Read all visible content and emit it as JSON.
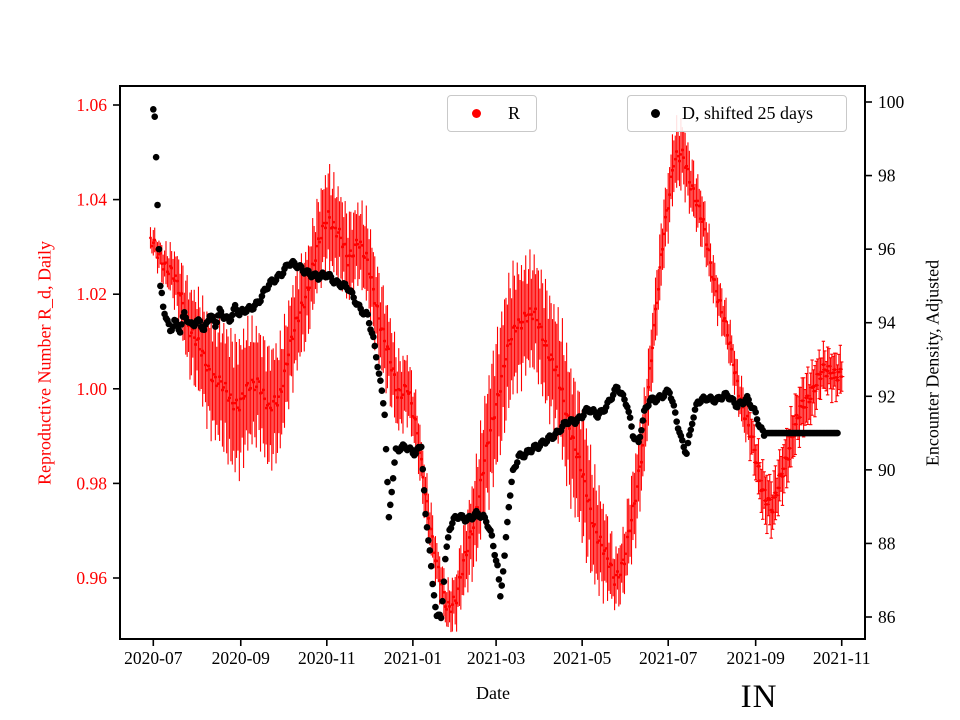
{
  "figure": {
    "background": "#ffffff",
    "annotation": "IN"
  },
  "chart_data": {
    "type": "scatter",
    "title": "",
    "xlabel": "Date",
    "grid": false,
    "x_tick_labels": [
      "2020-07",
      "2020-09",
      "2020-11",
      "2021-01",
      "2021-03",
      "2021-05",
      "2021-07",
      "2021-09",
      "2021-11"
    ],
    "left_axis": {
      "label": "Reproductive Number R_d, Daily",
      "color": "#ff0000",
      "tick_labels": [
        "0.96",
        "0.98",
        "1.00",
        "1.02",
        "1.04",
        "1.06"
      ],
      "range": [
        0.9475,
        1.0645
      ]
    },
    "right_axis": {
      "label": "Encounter Density, Adjusted",
      "color": "#000000",
      "tick_labels": [
        "86",
        "88",
        "90",
        "92",
        "94",
        "96",
        "98",
        "100"
      ],
      "range": [
        85.4,
        100.47
      ]
    },
    "legend": [
      {
        "label": "R",
        "color": "#ff0000",
        "marker": "dot"
      },
      {
        "label": "D, shifted 25 days",
        "color": "#000000",
        "marker": "dot"
      }
    ],
    "series": [
      {
        "name": "R",
        "axis": "left",
        "color": "#ff0000",
        "marker": "point-with-errorbar",
        "points_format": [
          "date",
          "R_value",
          "error_halfwidth"
        ],
        "points": [
          [
            "2020-06-29",
            1.031,
            0.002
          ],
          [
            "2020-07-06",
            1.028,
            0.003
          ],
          [
            "2020-07-13",
            1.025,
            0.004
          ],
          [
            "2020-07-20",
            1.02,
            0.006
          ],
          [
            "2020-07-27",
            1.013,
            0.008
          ],
          [
            "2020-08-03",
            1.008,
            0.009
          ],
          [
            "2020-08-10",
            1.004,
            0.01
          ],
          [
            "2020-08-17",
            1.001,
            0.011
          ],
          [
            "2020-08-24",
            0.998,
            0.012
          ],
          [
            "2020-08-31",
            0.997,
            0.012
          ],
          [
            "2020-09-07",
            1.0,
            0.011
          ],
          [
            "2020-09-14",
            1.002,
            0.01
          ],
          [
            "2020-09-21",
            0.995,
            0.011
          ],
          [
            "2020-09-28",
            0.998,
            0.01
          ],
          [
            "2020-10-05",
            1.008,
            0.009
          ],
          [
            "2020-10-12",
            1.015,
            0.009
          ],
          [
            "2020-10-19",
            1.022,
            0.008
          ],
          [
            "2020-10-26",
            1.03,
            0.008
          ],
          [
            "2020-11-02",
            1.037,
            0.009
          ],
          [
            "2020-11-09",
            1.033,
            0.008
          ],
          [
            "2020-11-16",
            1.027,
            0.008
          ],
          [
            "2020-11-23",
            1.032,
            0.007
          ],
          [
            "2020-11-30",
            1.026,
            0.008
          ],
          [
            "2020-12-07",
            1.017,
            0.008
          ],
          [
            "2020-12-14",
            1.008,
            0.008
          ],
          [
            "2020-12-21",
            0.999,
            0.007
          ],
          [
            "2020-12-28",
            1.001,
            0.006
          ],
          [
            "2021-01-04",
            0.99,
            0.005
          ],
          [
            "2021-01-11",
            0.976,
            0.005
          ],
          [
            "2021-01-18",
            0.962,
            0.004
          ],
          [
            "2021-01-25",
            0.954,
            0.004
          ],
          [
            "2021-02-01",
            0.956,
            0.005
          ],
          [
            "2021-02-08",
            0.965,
            0.007
          ],
          [
            "2021-02-15",
            0.975,
            0.009
          ],
          [
            "2021-02-22",
            0.986,
            0.011
          ],
          [
            "2021-03-01",
            0.997,
            0.012
          ],
          [
            "2021-03-08",
            1.007,
            0.012
          ],
          [
            "2021-03-15",
            1.013,
            0.011
          ],
          [
            "2021-03-22",
            1.016,
            0.01
          ],
          [
            "2021-03-29",
            1.015,
            0.01
          ],
          [
            "2021-04-05",
            1.01,
            0.011
          ],
          [
            "2021-04-12",
            1.004,
            0.011
          ],
          [
            "2021-04-19",
            0.996,
            0.012
          ],
          [
            "2021-04-26",
            0.988,
            0.012
          ],
          [
            "2021-05-03",
            0.979,
            0.012
          ],
          [
            "2021-05-10",
            0.971,
            0.01
          ],
          [
            "2021-05-17",
            0.965,
            0.008
          ],
          [
            "2021-05-24",
            0.96,
            0.005
          ],
          [
            "2021-05-31",
            0.964,
            0.006
          ],
          [
            "2021-06-07",
            0.975,
            0.008
          ],
          [
            "2021-06-14",
            0.991,
            0.007
          ],
          [
            "2021-06-21",
            1.012,
            0.006
          ],
          [
            "2021-06-28",
            1.034,
            0.006
          ],
          [
            "2021-07-05",
            1.048,
            0.006
          ],
          [
            "2021-07-12",
            1.049,
            0.006
          ],
          [
            "2021-07-19",
            1.042,
            0.005
          ],
          [
            "2021-07-26",
            1.034,
            0.005
          ],
          [
            "2021-08-02",
            1.024,
            0.004
          ],
          [
            "2021-08-09",
            1.015,
            0.004
          ],
          [
            "2021-08-16",
            1.006,
            0.004
          ],
          [
            "2021-08-23",
            0.996,
            0.004
          ],
          [
            "2021-08-30",
            0.988,
            0.004
          ],
          [
            "2021-09-06",
            0.979,
            0.005
          ],
          [
            "2021-09-13",
            0.974,
            0.005
          ],
          [
            "2021-09-20",
            0.983,
            0.005
          ],
          [
            "2021-09-27",
            0.99,
            0.005
          ],
          [
            "2021-10-04",
            0.996,
            0.005
          ],
          [
            "2021-10-11",
            1.0,
            0.005
          ],
          [
            "2021-10-18",
            1.003,
            0.004
          ],
          [
            "2021-10-25",
            1.004,
            0.004
          ],
          [
            "2021-11-01",
            1.003,
            0.004
          ]
        ]
      },
      {
        "name": "D, shifted 25 days",
        "axis": "right",
        "color": "#000000",
        "marker": "dot",
        "points_format": [
          "date",
          "density_value"
        ],
        "points": [
          [
            "2020-07-01",
            99.8
          ],
          [
            "2020-07-02",
            99.6
          ],
          [
            "2020-07-03",
            98.5
          ],
          [
            "2020-07-04",
            97.2
          ],
          [
            "2020-07-05",
            96.0
          ],
          [
            "2020-07-06",
            95.0
          ],
          [
            "2020-07-08",
            94.4
          ],
          [
            "2020-07-13",
            93.8
          ],
          [
            "2020-07-16",
            94.1
          ],
          [
            "2020-07-20",
            93.8
          ],
          [
            "2020-07-23",
            94.2
          ],
          [
            "2020-07-27",
            93.9
          ],
          [
            "2020-08-03",
            94.1
          ],
          [
            "2020-08-06",
            93.8
          ],
          [
            "2020-08-10",
            94.2
          ],
          [
            "2020-08-14",
            93.9
          ],
          [
            "2020-08-17",
            94.3
          ],
          [
            "2020-08-24",
            94.1
          ],
          [
            "2020-08-28",
            94.4
          ],
          [
            "2020-08-31",
            94.2
          ],
          [
            "2020-09-07",
            94.4
          ],
          [
            "2020-09-14",
            94.6
          ],
          [
            "2020-09-21",
            95.0
          ],
          [
            "2020-09-28",
            95.3
          ],
          [
            "2020-10-05",
            95.6
          ],
          [
            "2020-10-12",
            95.5
          ],
          [
            "2020-10-19",
            95.4
          ],
          [
            "2020-10-26",
            95.2
          ],
          [
            "2020-11-02",
            95.3
          ],
          [
            "2020-11-09",
            95.1
          ],
          [
            "2020-11-16",
            94.9
          ],
          [
            "2020-11-23",
            94.5
          ],
          [
            "2020-11-30",
            94.2
          ],
          [
            "2020-12-04",
            93.5
          ],
          [
            "2020-12-08",
            92.6
          ],
          [
            "2020-12-12",
            91.6
          ],
          [
            "2020-12-15",
            88.7
          ],
          [
            "2020-12-17",
            89.5
          ],
          [
            "2020-12-20",
            90.5
          ],
          [
            "2020-12-27",
            90.6
          ],
          [
            "2021-01-03",
            90.5
          ],
          [
            "2021-01-07",
            90.7
          ],
          [
            "2021-01-10",
            88.7
          ],
          [
            "2021-01-13",
            87.8
          ],
          [
            "2021-01-15",
            86.8
          ],
          [
            "2021-01-18",
            86.1
          ],
          [
            "2021-01-21",
            86.0
          ],
          [
            "2021-01-24",
            87.6
          ],
          [
            "2021-01-27",
            88.4
          ],
          [
            "2021-02-01",
            88.7
          ],
          [
            "2021-02-08",
            88.7
          ],
          [
            "2021-02-15",
            88.8
          ],
          [
            "2021-02-22",
            88.6
          ],
          [
            "2021-02-26",
            88.2
          ],
          [
            "2021-03-02",
            87.4
          ],
          [
            "2021-03-04",
            86.6
          ],
          [
            "2021-03-07",
            87.6
          ],
          [
            "2021-03-10",
            89.0
          ],
          [
            "2021-03-13",
            89.9
          ],
          [
            "2021-03-17",
            90.4
          ],
          [
            "2021-03-24",
            90.5
          ],
          [
            "2021-03-31",
            90.6
          ],
          [
            "2021-04-07",
            90.9
          ],
          [
            "2021-04-14",
            91.0
          ],
          [
            "2021-04-21",
            91.3
          ],
          [
            "2021-04-28",
            91.4
          ],
          [
            "2021-05-05",
            91.6
          ],
          [
            "2021-05-12",
            91.5
          ],
          [
            "2021-05-19",
            91.8
          ],
          [
            "2021-05-26",
            92.2
          ],
          [
            "2021-06-02",
            91.8
          ],
          [
            "2021-06-06",
            91.0
          ],
          [
            "2021-06-10",
            90.7
          ],
          [
            "2021-06-14",
            91.5
          ],
          [
            "2021-06-18",
            91.9
          ],
          [
            "2021-06-25",
            92.0
          ],
          [
            "2021-07-02",
            92.1
          ],
          [
            "2021-07-06",
            91.5
          ],
          [
            "2021-07-10",
            90.9
          ],
          [
            "2021-07-14",
            90.5
          ],
          [
            "2021-07-18",
            91.3
          ],
          [
            "2021-07-22",
            91.8
          ],
          [
            "2021-07-29",
            92.0
          ],
          [
            "2021-08-05",
            91.9
          ],
          [
            "2021-08-12",
            92.0
          ],
          [
            "2021-08-19",
            91.8
          ],
          [
            "2021-08-26",
            91.9
          ],
          [
            "2021-09-01",
            91.5
          ],
          [
            "2021-09-04",
            91.2
          ],
          [
            "2021-09-07",
            91.0
          ],
          [
            "2021-09-14",
            91.0
          ],
          [
            "2021-09-21",
            91.0
          ],
          [
            "2021-09-28",
            91.0
          ],
          [
            "2021-10-05",
            91.0
          ],
          [
            "2021-10-12",
            91.0
          ],
          [
            "2021-10-19",
            91.0
          ],
          [
            "2021-10-26",
            91.0
          ],
          [
            "2021-10-29",
            91.0
          ]
        ]
      }
    ]
  }
}
